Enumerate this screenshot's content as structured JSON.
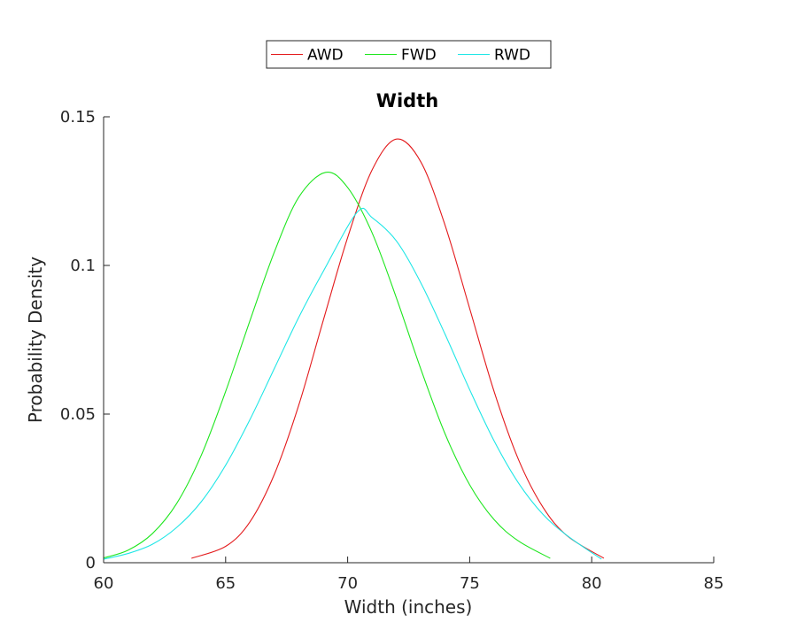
{
  "chart_data": {
    "type": "line",
    "title": "Width",
    "xlabel": "Width (inches)",
    "ylabel": "Probability Density",
    "xlim": [
      60,
      85
    ],
    "ylim": [
      0,
      0.15
    ],
    "xticks": [
      60,
      65,
      70,
      75,
      80,
      85
    ],
    "xtick_labels": [
      "60",
      "65",
      "70",
      "75",
      "80",
      "85"
    ],
    "yticks": [
      0,
      0.05,
      0.1,
      0.15
    ],
    "ytick_labels": [
      "0",
      "0.05",
      "0.1",
      "0.15"
    ],
    "grid": false,
    "legend_position": "top-center (outside, above title)",
    "series": [
      {
        "name": "AWD",
        "color": "#e31a1c",
        "x": [
          63.6,
          65,
          66,
          67,
          68,
          69,
          70,
          71,
          72,
          73,
          74,
          75,
          76,
          77,
          78,
          79,
          80.5
        ],
        "y": [
          0.0015,
          0.0055,
          0.0138,
          0.0298,
          0.0531,
          0.0815,
          0.1094,
          0.1321,
          0.1425,
          0.1348,
          0.1133,
          0.0855,
          0.0576,
          0.0347,
          0.0187,
          0.009,
          0.0015
        ]
      },
      {
        "name": "FWD",
        "color": "#1de61d",
        "x": [
          60,
          61,
          62,
          63,
          64,
          65,
          66,
          67,
          68,
          69.1,
          70,
          71,
          72,
          73,
          74,
          75,
          76,
          77,
          78.3
        ],
        "y": [
          0.0016,
          0.0042,
          0.0098,
          0.02,
          0.0361,
          0.0576,
          0.0815,
          0.1046,
          0.123,
          0.1313,
          0.1262,
          0.111,
          0.089,
          0.0651,
          0.0432,
          0.0262,
          0.0145,
          0.0073,
          0.0015
        ]
      },
      {
        "name": "RWD",
        "color": "#1ee6e6",
        "x": [
          60,
          61,
          62,
          63,
          64,
          65,
          66,
          67,
          68,
          69,
          70.4,
          71,
          72,
          73,
          74,
          75,
          76,
          77,
          78,
          79,
          80.4
        ],
        "y": [
          0.0012,
          0.0031,
          0.0062,
          0.0119,
          0.0205,
          0.0328,
          0.0482,
          0.0654,
          0.0826,
          0.098,
          0.118,
          0.1161,
          0.1082,
          0.0941,
          0.0767,
          0.0582,
          0.041,
          0.0268,
          0.0163,
          0.0091,
          0.0012
        ]
      }
    ]
  }
}
